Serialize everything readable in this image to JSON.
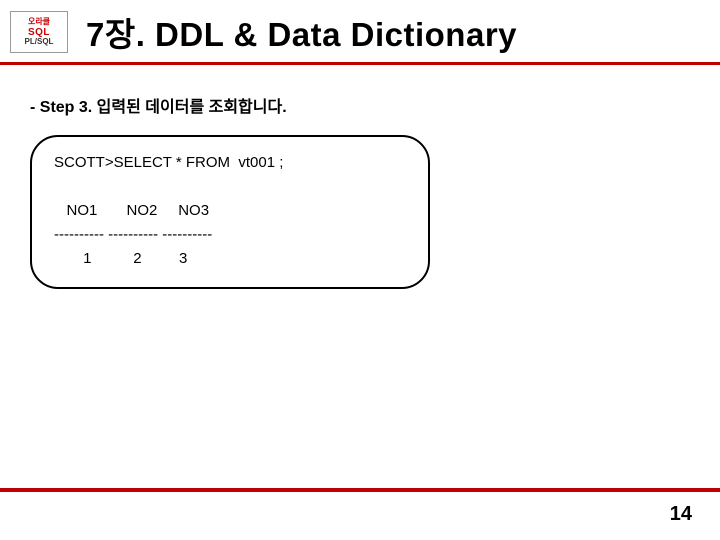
{
  "logo": {
    "line1": "오라클",
    "line2": "SQL",
    "line3": "PL/SQL"
  },
  "title": "7장. DDL & Data Dictionary",
  "step_label": "- Step 3. 입력된 데이터를 조회합니다.",
  "code": {
    "line1": "SCOTT>SELECT * FROM  vt001 ;",
    "blank": "",
    "line2": "   NO1       NO2     NO3",
    "line3": "---------- ---------- ----------",
    "line4": "       1          2         3"
  },
  "page_number": "14",
  "colors": {
    "accent": "#c00000",
    "text": "#000000",
    "background": "#ffffff",
    "logo_red": "#cc0000"
  }
}
